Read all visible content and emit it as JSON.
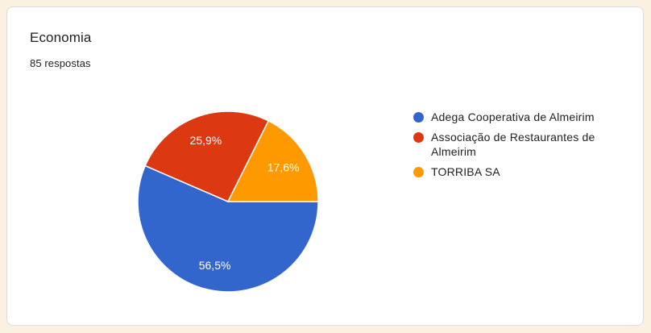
{
  "card": {
    "title": "Economia",
    "subtitle": "85 respostas"
  },
  "theme": {
    "page_background": "#FAF1E0",
    "card_background": "#FFFFFF",
    "card_border": "#DADCE0",
    "text_color": "#202124"
  },
  "chart_data": {
    "type": "pie",
    "title": "Economia",
    "subtitle": "85 respostas",
    "total_responses": 85,
    "legend_position": "right",
    "direction": "clockwise",
    "start_angle_deg": 90,
    "label_color": "#ffffff",
    "slice_border_color": "#ffffff",
    "slices": [
      {
        "label": "Adega Cooperativa de Almeirim",
        "percent": 56.5,
        "display": "56,5%",
        "color": "#3366CC"
      },
      {
        "label": "Associação de Restaurantes de Almeirim",
        "percent": 25.9,
        "display": "25,9%",
        "color": "#DC3912"
      },
      {
        "label": "TORRIBA SA",
        "percent": 17.6,
        "display": "17,6%",
        "color": "#FF9900"
      }
    ]
  }
}
